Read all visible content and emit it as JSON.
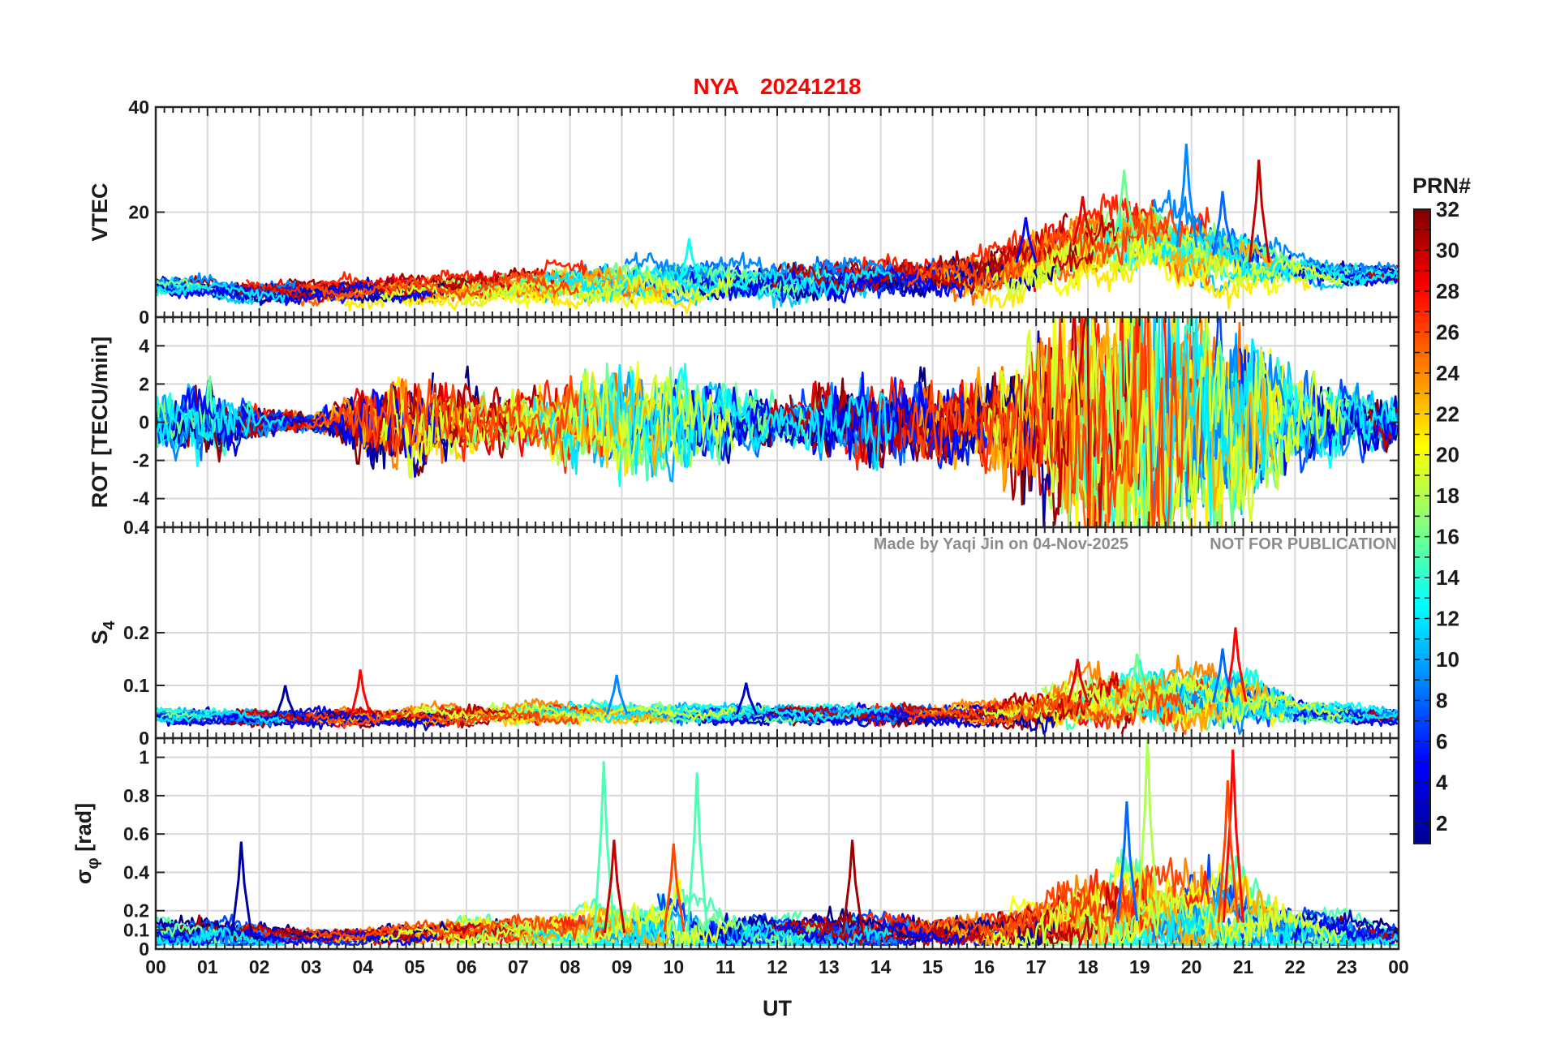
{
  "chart_data": {
    "type": "line",
    "title_station": "NYA",
    "title_date": "20241218",
    "xlabel": "UT",
    "x_ticks": [
      "00",
      "01",
      "02",
      "03",
      "04",
      "05",
      "06",
      "07",
      "08",
      "09",
      "10",
      "11",
      "12",
      "13",
      "14",
      "15",
      "16",
      "17",
      "18",
      "19",
      "20",
      "21",
      "22",
      "23",
      "00"
    ],
    "xlim": [
      0,
      24
    ],
    "grid": true,
    "watermark_left": "Made by Yaqi Jin on 04-Nov-2025",
    "watermark_right": "NOT FOR PUBLICATION",
    "colorbar": {
      "title": "PRN#",
      "range": [
        1,
        32
      ],
      "ticks": [
        "2",
        "4",
        "6",
        "8",
        "10",
        "12",
        "14",
        "16",
        "18",
        "20",
        "22",
        "24",
        "26",
        "28",
        "30",
        "32"
      ],
      "colormap": "jet"
    },
    "panels": [
      {
        "id": "vtec",
        "ylabel": "VTEC",
        "ylim": [
          0,
          40
        ],
        "ytick_values": [
          0,
          20,
          40
        ],
        "ytick_labels": [
          "0",
          "20",
          "40"
        ],
        "baseline": [
          [
            0,
            6
          ],
          [
            2,
            4.5
          ],
          [
            4,
            5
          ],
          [
            6,
            5.5
          ],
          [
            8,
            6.5
          ],
          [
            10,
            7
          ],
          [
            12,
            6.5
          ],
          [
            14,
            7
          ],
          [
            16,
            8
          ],
          [
            17,
            11
          ],
          [
            18,
            14
          ],
          [
            19,
            16
          ],
          [
            20,
            13
          ],
          [
            21,
            11
          ],
          [
            22,
            9
          ],
          [
            23,
            8
          ],
          [
            24,
            8
          ]
        ],
        "spread": [
          [
            0,
            1.5
          ],
          [
            7,
            2.5
          ],
          [
            9,
            3.5
          ],
          [
            15,
            3
          ],
          [
            16.5,
            4.5
          ],
          [
            17.5,
            5.5
          ],
          [
            19,
            6
          ],
          [
            21,
            5
          ],
          [
            22,
            2.5
          ],
          [
            24,
            1.5
          ]
        ],
        "peaks": [
          {
            "t": 17.9,
            "v": 23,
            "prn": 29
          },
          {
            "t": 18.7,
            "v": 28,
            "prn": 16
          },
          {
            "t": 19.9,
            "v": 33,
            "prn": 9
          },
          {
            "t": 20.6,
            "v": 24,
            "prn": 8
          },
          {
            "t": 21.3,
            "v": 30,
            "prn": 30
          },
          {
            "t": 10.3,
            "v": 15,
            "prn": 13
          },
          {
            "t": 16.8,
            "v": 19,
            "prn": 5
          }
        ]
      },
      {
        "id": "rot",
        "ylabel": "ROT [TECU/min]",
        "ylim": [
          -5.5,
          5.5
        ],
        "ytick_values": [
          -4,
          -2,
          0,
          2,
          4
        ],
        "ytick_labels": [
          "-4",
          "-2",
          "0",
          "2",
          "4"
        ],
        "spread": [
          [
            0,
            0.9
          ],
          [
            1,
            1.2
          ],
          [
            2,
            0.5
          ],
          [
            3,
            0.3
          ],
          [
            3.5,
            0.6
          ],
          [
            4,
            1.2
          ],
          [
            5,
            1.6
          ],
          [
            6,
            1.0
          ],
          [
            7,
            0.8
          ],
          [
            8,
            1.4
          ],
          [
            9,
            1.8
          ],
          [
            10,
            1.6
          ],
          [
            11,
            1.2
          ],
          [
            12,
            0.7
          ],
          [
            13,
            1.2
          ],
          [
            14,
            1.5
          ],
          [
            15,
            1.3
          ],
          [
            16,
            1.6
          ],
          [
            17,
            2.8
          ],
          [
            18,
            4.2
          ],
          [
            19,
            4.6
          ],
          [
            20,
            4.2
          ],
          [
            21,
            3.2
          ],
          [
            22,
            1.6
          ],
          [
            23,
            1.0
          ],
          [
            24,
            0.8
          ]
        ]
      },
      {
        "id": "s4",
        "ylabel": "S",
        "ylabel_sub": "4",
        "ylim": [
          0,
          0.4
        ],
        "ytick_values": [
          0,
          0.1,
          0.2,
          0.4
        ],
        "ytick_labels": [
          "0",
          "0.1",
          "0.2",
          "0.4"
        ],
        "baseline": [
          [
            0,
            0.04
          ],
          [
            4,
            0.04
          ],
          [
            8,
            0.045
          ],
          [
            12,
            0.045
          ],
          [
            16,
            0.045
          ],
          [
            17,
            0.055
          ],
          [
            18,
            0.07
          ],
          [
            19,
            0.07
          ],
          [
            20,
            0.065
          ],
          [
            21,
            0.07
          ],
          [
            22,
            0.05
          ],
          [
            24,
            0.04
          ]
        ],
        "spread": [
          [
            0,
            0.012
          ],
          [
            8,
            0.018
          ],
          [
            12,
            0.015
          ],
          [
            16,
            0.018
          ],
          [
            17.5,
            0.04
          ],
          [
            19,
            0.05
          ],
          [
            21,
            0.05
          ],
          [
            22,
            0.02
          ],
          [
            24,
            0.012
          ]
        ],
        "peaks": [
          {
            "t": 20.85,
            "v": 0.21,
            "prn": 28
          },
          {
            "t": 18.95,
            "v": 0.16,
            "prn": 16
          },
          {
            "t": 17.8,
            "v": 0.15,
            "prn": 29
          },
          {
            "t": 20.6,
            "v": 0.17,
            "prn": 8
          },
          {
            "t": 3.95,
            "v": 0.13,
            "prn": 28
          },
          {
            "t": 2.5,
            "v": 0.1,
            "prn": 2
          },
          {
            "t": 8.9,
            "v": 0.12,
            "prn": 9
          },
          {
            "t": 11.4,
            "v": 0.105,
            "prn": 3
          }
        ]
      },
      {
        "id": "sigphi",
        "ylabel": "σ",
        "ylabel_sub": "φ",
        "ylabel_suffix": " [rad]",
        "ylim": [
          0,
          1.1
        ],
        "ytick_values": [
          0,
          0.1,
          0.2,
          0.4,
          0.6,
          0.8,
          1
        ],
        "ytick_labels": [
          "0",
          "0.1",
          "0.2",
          "0.4",
          "0.6",
          "0.8",
          "1"
        ],
        "baseline": [
          [
            0,
            0.08
          ],
          [
            3,
            0.06
          ],
          [
            8,
            0.08
          ],
          [
            10,
            0.09
          ],
          [
            14,
            0.08
          ],
          [
            16,
            0.08
          ],
          [
            17,
            0.1
          ],
          [
            18,
            0.14
          ],
          [
            19,
            0.15
          ],
          [
            20,
            0.13
          ],
          [
            21,
            0.14
          ],
          [
            22,
            0.1
          ],
          [
            24,
            0.07
          ]
        ],
        "spread": [
          [
            0,
            0.06
          ],
          [
            1,
            0.08
          ],
          [
            3,
            0.03
          ],
          [
            8,
            0.08
          ],
          [
            9,
            0.14
          ],
          [
            10,
            0.16
          ],
          [
            12,
            0.06
          ],
          [
            13.5,
            0.1
          ],
          [
            15,
            0.06
          ],
          [
            16,
            0.08
          ],
          [
            17.5,
            0.16
          ],
          [
            19,
            0.22
          ],
          [
            21,
            0.2
          ],
          [
            22,
            0.1
          ],
          [
            24,
            0.05
          ]
        ],
        "peaks": [
          {
            "t": 20.8,
            "v": 1.04,
            "prn": 28
          },
          {
            "t": 19.15,
            "v": 1.1,
            "prn": 18
          },
          {
            "t": 8.65,
            "v": 0.98,
            "prn": 15
          },
          {
            "t": 10.45,
            "v": 0.92,
            "prn": 15
          },
          {
            "t": 20.7,
            "v": 0.88,
            "prn": 26
          },
          {
            "t": 18.75,
            "v": 0.77,
            "prn": 8
          },
          {
            "t": 1.65,
            "v": 0.56,
            "prn": 2
          },
          {
            "t": 13.45,
            "v": 0.57,
            "prn": 31
          },
          {
            "t": 8.85,
            "v": 0.57,
            "prn": 30
          },
          {
            "t": 10.0,
            "v": 0.55,
            "prn": 26
          }
        ]
      }
    ]
  }
}
